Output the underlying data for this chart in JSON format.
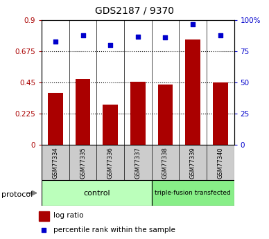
{
  "title": "GDS2187 / 9370",
  "samples": [
    "GSM77334",
    "GSM77335",
    "GSM77336",
    "GSM77337",
    "GSM77338",
    "GSM77339",
    "GSM77340"
  ],
  "log_ratio": [
    0.375,
    0.475,
    0.29,
    0.455,
    0.435,
    0.76,
    0.45
  ],
  "percentile_rank": [
    83,
    88,
    80,
    87,
    86,
    97,
    88
  ],
  "bar_color": "#aa0000",
  "dot_color": "#0000cc",
  "ylim_left": [
    0,
    0.9
  ],
  "ylim_right": [
    0,
    100
  ],
  "yticks_left": [
    0,
    0.225,
    0.45,
    0.675,
    0.9
  ],
  "ytick_labels_left": [
    "0",
    "0.225",
    "0.45",
    "0.675",
    "0.9"
  ],
  "yticks_right": [
    0,
    25,
    50,
    75,
    100
  ],
  "ytick_labels_right": [
    "0",
    "25",
    "50",
    "75",
    "100%"
  ],
  "hlines": [
    0.225,
    0.45,
    0.675
  ],
  "n_control": 4,
  "n_transfected": 3,
  "control_label": "control",
  "transfected_label": "triple-fusion transfected",
  "protocol_label": "protocol",
  "legend_bar_label": "log ratio",
  "legend_dot_label": "percentile rank within the sample",
  "bg_plot": "#ffffff",
  "bg_xtick": "#cccccc",
  "bg_control": "#bbffbb",
  "bg_transfected": "#88ee88",
  "title_fontsize": 10,
  "tick_fontsize": 7.5,
  "bar_width": 0.55
}
